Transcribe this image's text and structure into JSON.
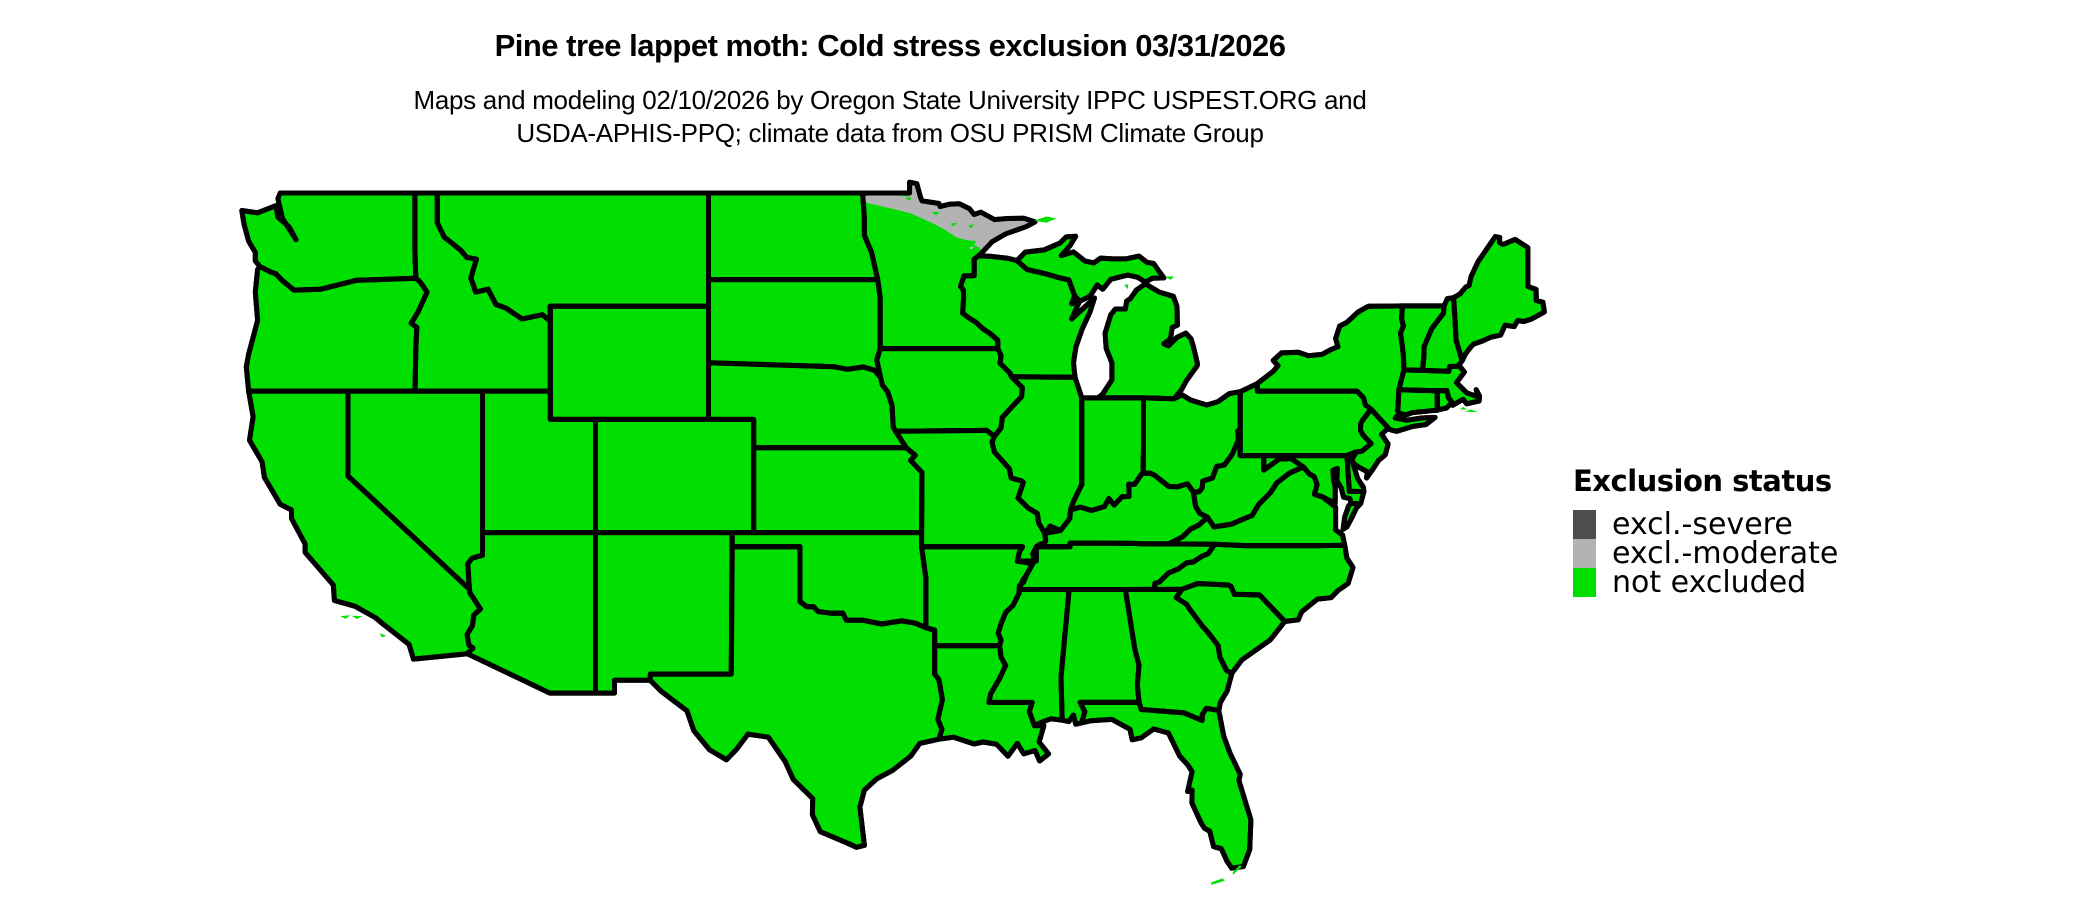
{
  "header": {
    "title": "Pine tree lappet moth: Cold stress exclusion 03/31/2026",
    "subtitle_line1": "Maps and modeling 02/10/2026 by Oregon State University IPPC USPEST.ORG and",
    "subtitle_line2": "USDA-APHIS-PPQ; climate data from OSU PRISM Climate Group"
  },
  "legend": {
    "title": "Exclusion status",
    "entries": [
      {
        "id": "severe",
        "label": "excl.-severe",
        "color": "#4d4d4d"
      },
      {
        "id": "moderate",
        "label": "excl.-moderate",
        "color": "#b3b3b3"
      },
      {
        "id": "not_excluded",
        "label": "not excluded",
        "color": "#00df00"
      }
    ]
  },
  "map": {
    "region": "conterminous United States",
    "background_color": "#ffffff",
    "border_color": "#000000",
    "default_status": "not excluded",
    "areas": [
      {
        "name": "conterminous-united-states",
        "status": "not excluded"
      },
      {
        "name": "northeastern-minnesota",
        "status": "excl.-moderate"
      }
    ]
  }
}
